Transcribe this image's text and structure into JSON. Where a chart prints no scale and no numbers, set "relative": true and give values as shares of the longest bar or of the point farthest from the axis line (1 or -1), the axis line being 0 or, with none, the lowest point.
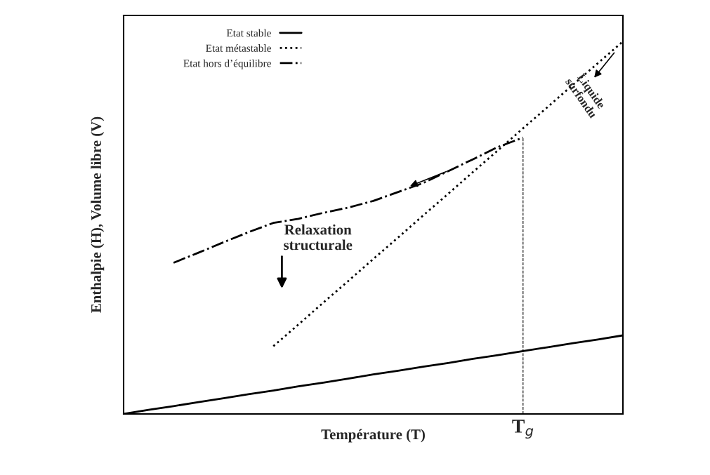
{
  "chart_data": {
    "type": "line",
    "relative": true,
    "xlabel": "Température (T)",
    "ylabel": "Enthalpie (H), Volume libre (V)",
    "categories": [
      null,
      null,
      null,
      null,
      null,
      null,
      null,
      null,
      null,
      null,
      null,
      null,
      null,
      null,
      null,
      null,
      null,
      null,
      null,
      null,
      null
    ],
    "legend": "top left",
    "marker": "none",
    "series": [
      {
        "name": "Etat stable",
        "color": "#000000",
        "line_style": "solid",
        "values": [
          0,
          0.011,
          0.021,
          0.032,
          0.042,
          0.053,
          0.063,
          0.074,
          0.084,
          0.095,
          0.106,
          0.116,
          0.127,
          0.137,
          0.148,
          0.158,
          0.169,
          0.179,
          0.19,
          0.2,
          0.211
        ]
      },
      {
        "name": "Etat métastable",
        "color": "#000000",
        "line_style": "dotted",
        "values": [
          null,
          null,
          null,
          null,
          null,
          null,
          0.182,
          0.24,
          0.299,
          0.357,
          0.416,
          0.474,
          0.533,
          0.591,
          0.65,
          0.708,
          0.767,
          0.825,
          0.884,
          0.942,
          1.0
        ]
      },
      {
        "name": "Etat hors d’équilibre",
        "color": "#000000",
        "line_style": "dashdot",
        "values": [
          null,
          null,
          0.406,
          0.433,
          0.461,
          0.488,
          0.513,
          0.524,
          0.54,
          0.554,
          0.572,
          0.596,
          0.62,
          0.652,
          0.684,
          0.717,
          0.742,
          null,
          null,
          null,
          null
        ]
      }
    ],
    "annotations": [
      "Relaxation structurale",
      "Liquide surfondu",
      "T$_{g}$"
    ]
  }
}
